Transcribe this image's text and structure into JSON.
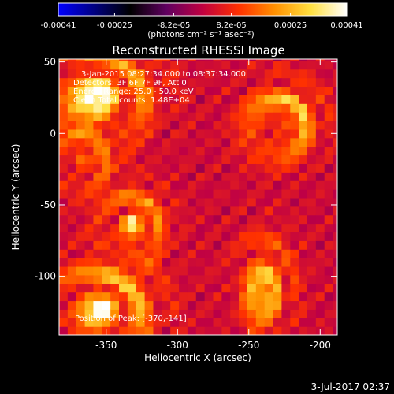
{
  "chart_data": {
    "type": "heatmap",
    "title": "Reconstructed RHESSI Image",
    "xlabel": "Heliocentric X (arcsec)",
    "ylabel": "Heliocentric Y (arcsec)",
    "xlim": [
      -383,
      -188
    ],
    "ylim": [
      -141,
      52
    ],
    "x_ticks": [
      -350,
      -300,
      -250,
      -200
    ],
    "y_ticks": [
      50,
      0,
      -50,
      -100
    ],
    "grid": false,
    "colorbar": {
      "orientation": "horizontal",
      "placement": "top",
      "range": [
        -0.00041,
        0.00041
      ],
      "tick_labels": [
        "-0.00041",
        "-0.00025",
        "-8.2e-05",
        "8.2e-05",
        "0.00025",
        "0.00041"
      ],
      "tick_values": [
        -0.00041,
        -0.00025,
        -8.2e-05,
        8.2e-05,
        0.00025,
        0.00041
      ],
      "unit_label": "(photons cm⁻² s⁻¹ asec⁻²)",
      "colors": [
        "#0000ff",
        "#000080",
        "#000000",
        "#600060",
        "#c00040",
        "#ff3000",
        "#ff9000",
        "#ffe040",
        "#ffffff"
      ]
    },
    "annotations": [
      "3-Jan-2015 08:27:34.000 to 08:37:34.000",
      "Detectors: 3F 6F 7F 9F, Att 0",
      "Energy Range: 25.0 - 50.0 keV",
      "Clean    Total counts: 1.48E+04"
    ],
    "peak_label": "Position of Peak: [-370,-141]",
    "peak_position": [
      -370,
      -141
    ],
    "sources": [
      {
        "x": -352,
        "y": 30,
        "sx": 34,
        "sy": 28,
        "amp": 1.0
      },
      {
        "x": -365,
        "y": -15,
        "sx": 20,
        "sy": 22,
        "amp": 0.7
      },
      {
        "x": -330,
        "y": -62,
        "sx": 20,
        "sy": 22,
        "amp": 0.95
      },
      {
        "x": -350,
        "y": -120,
        "sx": 32,
        "sy": 28,
        "amp": 1.1
      },
      {
        "x": -225,
        "y": 10,
        "sx": 24,
        "sy": 24,
        "amp": 1.0
      },
      {
        "x": -238,
        "y": -105,
        "sx": 18,
        "sy": 30,
        "amp": 0.8
      }
    ],
    "background": 6e-05
  },
  "footer": {
    "timestamp": "3-Jul-2017 02:37"
  }
}
